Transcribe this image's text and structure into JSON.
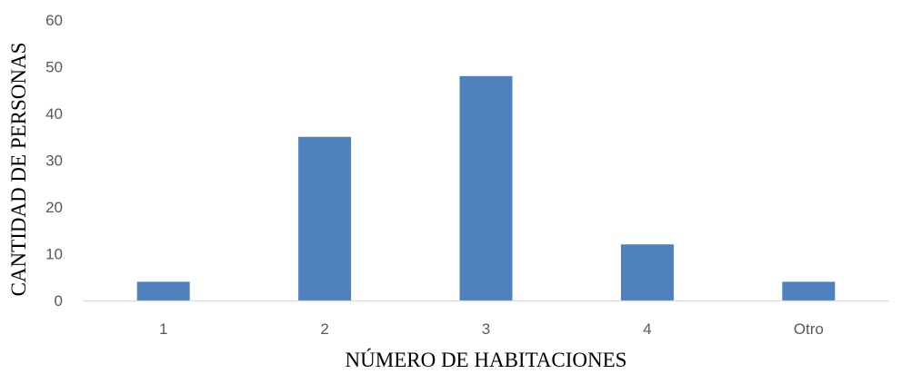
{
  "chart_data": {
    "type": "bar",
    "title": "",
    "xlabel": "NÚMERO DE HABITACIONES",
    "ylabel": "CANTIDAD DE PERSONAS",
    "categories": [
      "1",
      "2",
      "3",
      "4",
      "Otro"
    ],
    "values": [
      4,
      35,
      48,
      12,
      4
    ],
    "ylim": [
      0,
      60
    ],
    "yticks": [
      0,
      10,
      20,
      30,
      40,
      50,
      60
    ],
    "grid": false,
    "legend": "none",
    "bar_color": "#4F81BD",
    "axis_color": "#D9D9D9"
  }
}
